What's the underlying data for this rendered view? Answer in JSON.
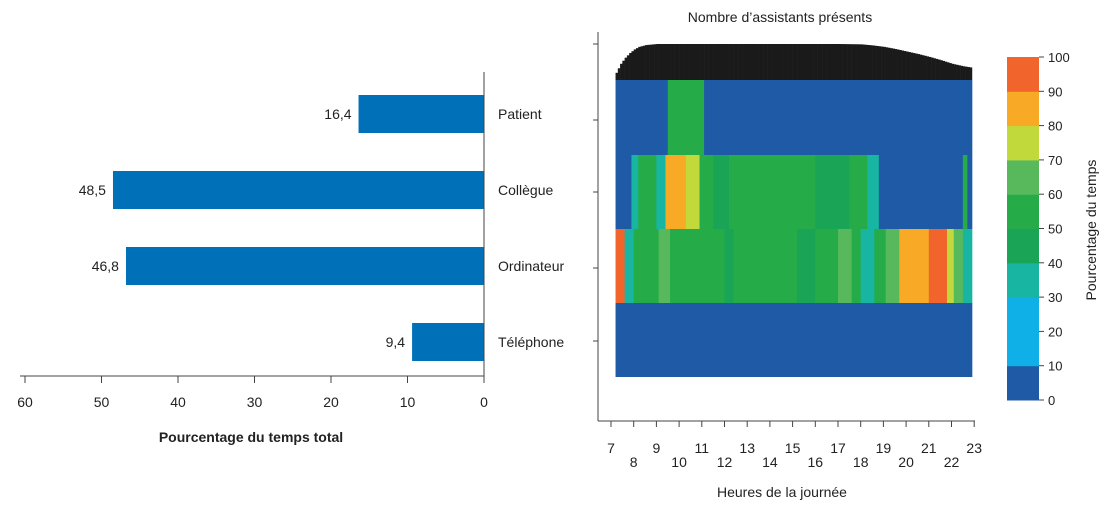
{
  "colors": {
    "bar": "#0070b8",
    "axis": "#444444",
    "presence": "#1a1a1a",
    "scale": [
      "#1f5aa6",
      "#0fb0e8",
      "#17b5a2",
      "#1aa455",
      "#25ac48",
      "#58b95c",
      "#c2d93c",
      "#f8aa26",
      "#f1652c"
    ]
  },
  "chart_data": [
    {
      "type": "bar",
      "orientation": "horizontal",
      "categories": [
        "Patient",
        "Collègue",
        "Ordinateur",
        "Téléphone"
      ],
      "values": [
        16.4,
        48.5,
        46.8,
        9.4
      ],
      "value_labels": [
        "16,4",
        "48,5",
        "46,8",
        "9,4"
      ],
      "xlabel": "Pourcentage du temps total",
      "xlim": [
        60,
        0
      ],
      "xticks": [
        60,
        50,
        40,
        30,
        20,
        10,
        0
      ]
    },
    {
      "type": "heatmap",
      "title": "Nombre d’assistants présents",
      "xlabel": "Heures de la journée",
      "colorbar_label": "Pourcentage du temps",
      "xlim": [
        7,
        23
      ],
      "xticks_upper": [
        7,
        9,
        11,
        13,
        15,
        17,
        19,
        21,
        23
      ],
      "xticks_lower": [
        8,
        10,
        12,
        14,
        16,
        18,
        20,
        22
      ],
      "colorbar_ticks": [
        0,
        10,
        20,
        30,
        40,
        50,
        60,
        70,
        80,
        90,
        100
      ],
      "rows": [
        "Patient",
        "Collègue",
        "Ordinateur",
        "Téléphone"
      ],
      "presence": {
        "x": [
          7.2,
          7.4,
          7.6,
          7.8,
          8.0,
          8.2,
          8.5,
          9.0,
          10.0,
          11.0,
          12.0,
          13.0,
          14.0,
          15.0,
          16.0,
          17.0,
          18.0,
          18.5,
          19.0,
          19.5,
          20.0,
          20.5,
          21.0,
          21.5,
          22.0,
          22.5,
          22.8
        ],
        "height": [
          0.2,
          0.45,
          0.62,
          0.75,
          0.85,
          0.92,
          0.97,
          1.0,
          1.0,
          1.0,
          1.0,
          1.0,
          1.0,
          1.0,
          1.0,
          1.0,
          0.99,
          0.96,
          0.92,
          0.86,
          0.79,
          0.72,
          0.64,
          0.55,
          0.45,
          0.38,
          0.35
        ]
      },
      "segments": [
        [
          [
            7.2,
            9.3,
            5
          ],
          [
            9.3,
            9.5,
            10
          ],
          [
            9.5,
            11.1,
            50
          ],
          [
            11.1,
            11.6,
            10
          ],
          [
            11.6,
            13.0,
            5
          ],
          [
            13.0,
            13.3,
            10
          ],
          [
            13.3,
            14.0,
            5
          ],
          [
            14.0,
            15.2,
            10
          ],
          [
            15.2,
            16.5,
            5
          ],
          [
            16.5,
            17.0,
            10
          ],
          [
            17.0,
            17.4,
            5
          ],
          [
            17.4,
            17.7,
            10
          ],
          [
            17.7,
            18.1,
            5
          ],
          [
            18.1,
            18.6,
            10
          ],
          [
            18.6,
            22.9,
            5
          ]
        ],
        [
          [
            7.2,
            7.6,
            5
          ],
          [
            7.6,
            7.9,
            10
          ],
          [
            7.9,
            8.2,
            30
          ],
          [
            8.2,
            9.0,
            50
          ],
          [
            9.0,
            9.4,
            30
          ],
          [
            9.4,
            10.3,
            90
          ],
          [
            10.3,
            10.9,
            80
          ],
          [
            10.9,
            11.5,
            50
          ],
          [
            11.5,
            12.2,
            40
          ],
          [
            12.2,
            12.8,
            50
          ],
          [
            12.8,
            16.0,
            50
          ],
          [
            16.0,
            17.5,
            40
          ],
          [
            17.5,
            18.3,
            50
          ],
          [
            18.3,
            18.8,
            30
          ],
          [
            18.8,
            19.5,
            10
          ],
          [
            19.5,
            22.5,
            5
          ],
          [
            22.5,
            22.7,
            45
          ],
          [
            22.7,
            22.9,
            5
          ]
        ],
        [
          [
            7.2,
            7.6,
            100
          ],
          [
            7.6,
            8.0,
            30
          ],
          [
            8.0,
            8.4,
            50
          ],
          [
            8.4,
            9.1,
            50
          ],
          [
            9.1,
            9.6,
            60
          ],
          [
            9.6,
            12.0,
            50
          ],
          [
            12.0,
            12.4,
            40
          ],
          [
            12.4,
            15.2,
            50
          ],
          [
            15.2,
            16.0,
            40
          ],
          [
            16.0,
            17.0,
            50
          ],
          [
            17.0,
            17.6,
            60
          ],
          [
            17.6,
            18.0,
            50
          ],
          [
            18.0,
            18.6,
            30
          ],
          [
            18.6,
            19.1,
            50
          ],
          [
            19.1,
            19.7,
            70
          ],
          [
            19.7,
            21.0,
            90
          ],
          [
            21.0,
            21.8,
            100
          ],
          [
            21.8,
            22.1,
            80
          ],
          [
            22.1,
            22.5,
            60
          ],
          [
            22.5,
            22.9,
            30
          ]
        ],
        [
          [
            7.2,
            8.6,
            5
          ],
          [
            8.6,
            9.3,
            10
          ],
          [
            9.3,
            11.6,
            5
          ],
          [
            11.6,
            11.9,
            10
          ],
          [
            11.9,
            13.1,
            5
          ],
          [
            13.1,
            13.4,
            10
          ],
          [
            13.4,
            14.2,
            5
          ],
          [
            14.2,
            15.2,
            10
          ],
          [
            15.2,
            16.5,
            5
          ],
          [
            16.5,
            17.0,
            10
          ],
          [
            17.0,
            17.3,
            5
          ],
          [
            17.3,
            17.5,
            10
          ],
          [
            17.5,
            22.9,
            5
          ]
        ]
      ]
    }
  ]
}
